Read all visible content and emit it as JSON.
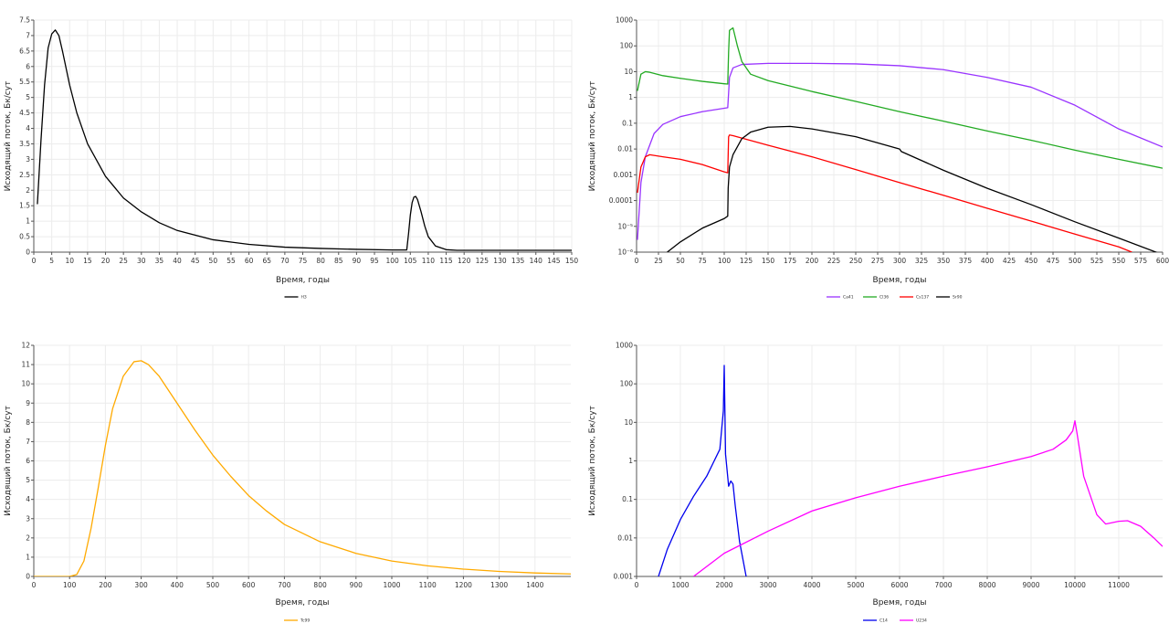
{
  "chart_data": [
    {
      "type": "line",
      "xlabel": "Время, годы",
      "ylabel": "Исходящий поток, Бк/сут",
      "xlim": [
        0,
        150
      ],
      "ylim": [
        0,
        7.5
      ],
      "yscale": "linear",
      "xticks": [
        0,
        5,
        10,
        15,
        20,
        25,
        30,
        35,
        40,
        45,
        50,
        55,
        60,
        65,
        70,
        75,
        80,
        85,
        90,
        95,
        100,
        105,
        110,
        115,
        120,
        125,
        130,
        135,
        140,
        145,
        150
      ],
      "xtick_labels": [
        "0",
        "5",
        "10",
        "15",
        "20",
        "25",
        "30",
        "35",
        "40",
        "45",
        "50",
        "55",
        "60",
        "65",
        "70",
        "75",
        "80",
        "85",
        "90",
        "95",
        "100",
        "105",
        "110",
        "115",
        "120",
        "125",
        "130",
        "135",
        "140",
        "145",
        "150"
      ],
      "yticks": [
        0,
        0.5,
        1,
        1.5,
        2,
        2.5,
        3,
        3.5,
        4,
        4.5,
        5,
        5.5,
        6,
        6.5,
        7,
        7.5
      ],
      "ytick_labels": [
        "0",
        "0.5",
        "1",
        "1.5",
        "2",
        "2.5",
        "3",
        "3.5",
        "4",
        "4.5",
        "5",
        "5.5",
        "6",
        "6.5",
        "7",
        "7.5"
      ],
      "grid": true,
      "legend_position": "bottom-center",
      "series": [
        {
          "name": "H3",
          "color": "#000000",
          "x": [
            1,
            2,
            3,
            4,
            5,
            6,
            7,
            8,
            10,
            12,
            15,
            20,
            25,
            30,
            35,
            40,
            50,
            60,
            70,
            80,
            90,
            100,
            104,
            104.5,
            105,
            105.5,
            106,
            106.5,
            107,
            108,
            109,
            110,
            112,
            115,
            118,
            120,
            130,
            150
          ],
          "y": [
            1.55,
            3.6,
            5.4,
            6.6,
            7.05,
            7.18,
            7.0,
            6.5,
            5.4,
            4.5,
            3.5,
            2.45,
            1.75,
            1.3,
            0.95,
            0.7,
            0.4,
            0.25,
            0.16,
            0.12,
            0.09,
            0.07,
            0.07,
            0.6,
            1.2,
            1.6,
            1.78,
            1.8,
            1.7,
            1.3,
            0.85,
            0.5,
            0.2,
            0.08,
            0.06,
            0.06,
            0.06,
            0.06
          ]
        }
      ]
    },
    {
      "type": "line",
      "xlabel": "Время, годы",
      "ylabel": "Исходящий поток, Бк/сут",
      "xlim": [
        0,
        600
      ],
      "ylim": [
        1e-06,
        1000
      ],
      "yscale": "log",
      "xticks": [
        0,
        25,
        50,
        75,
        100,
        125,
        150,
        175,
        200,
        225,
        250,
        275,
        300,
        325,
        350,
        375,
        400,
        425,
        450,
        475,
        500,
        525,
        550,
        575,
        600
      ],
      "xtick_labels": [
        "0",
        "25",
        "50",
        "75",
        "100",
        "125",
        "150",
        "175",
        "200",
        "225",
        "250",
        "275",
        "300",
        "325",
        "350",
        "375",
        "400",
        "425",
        "450",
        "475",
        "500",
        "525",
        "550",
        "575",
        "600"
      ],
      "yticks": [
        1e-06,
        1e-05,
        0.0001,
        0.001,
        0.01,
        0.1,
        1,
        10,
        100,
        1000
      ],
      "ytick_labels": [
        "10⁻⁶",
        "10⁻⁵",
        "0.0001",
        "0.001",
        "0.01",
        "0.1",
        "1",
        "10",
        "100",
        "1000"
      ],
      "grid": true,
      "legend_position": "bottom-center",
      "series": [
        {
          "name": "Ca41",
          "color": "#9933ff",
          "x": [
            1,
            5,
            10,
            20,
            30,
            50,
            75,
            100,
            104,
            105,
            106,
            110,
            120,
            150,
            200,
            250,
            300,
            350,
            400,
            450,
            500,
            550,
            600
          ],
          "y": [
            3e-06,
            0.0005,
            0.005,
            0.04,
            0.09,
            0.18,
            0.28,
            0.38,
            0.4,
            1.5,
            6,
            14,
            19,
            21,
            21,
            20,
            17,
            12,
            6,
            2.5,
            0.5,
            0.06,
            0.012
          ]
        },
        {
          "name": "Cl36",
          "color": "#22aa22",
          "x": [
            1,
            5,
            10,
            15,
            30,
            50,
            75,
            100,
            104,
            105,
            106,
            110,
            115,
            120,
            130,
            150,
            200,
            250,
            300,
            350,
            400,
            450,
            500,
            550,
            600
          ],
          "y": [
            1.8,
            8,
            10,
            9.5,
            7,
            5.5,
            4.2,
            3.4,
            3.3,
            60,
            400,
            500,
            100,
            25,
            8,
            4.5,
            1.7,
            0.7,
            0.28,
            0.12,
            0.05,
            0.022,
            0.009,
            0.004,
            0.0018
          ]
        },
        {
          "name": "Cs137",
          "color": "#ff0000",
          "x": [
            1,
            5,
            10,
            15,
            30,
            50,
            75,
            100,
            104,
            105,
            106,
            110,
            150,
            200,
            250,
            300,
            350,
            400,
            450,
            500,
            550,
            565
          ],
          "y": [
            0.0002,
            0.002,
            0.005,
            0.006,
            0.005,
            0.004,
            0.0025,
            0.0013,
            0.0012,
            0.03,
            0.035,
            0.033,
            0.014,
            0.005,
            0.0016,
            0.0005,
            0.00016,
            5e-05,
            1.6e-05,
            5e-06,
            1.6e-06,
            1e-06
          ]
        },
        {
          "name": "Sr90",
          "color": "#000000",
          "x": [
            35,
            50,
            75,
            100,
            104,
            104.5,
            106,
            110,
            120,
            130,
            150,
            175,
            200,
            250,
            300,
            302,
            350,
            400,
            450,
            500,
            550,
            600
          ],
          "y": [
            1e-06,
            2.5e-06,
            8.5e-06,
            2e-05,
            2.5e-05,
            0.0003,
            0.002,
            0.006,
            0.025,
            0.045,
            0.07,
            0.075,
            0.06,
            0.03,
            0.01,
            0.008,
            0.0015,
            0.0003,
            7e-05,
            1.5e-05,
            3.5e-06,
            8e-07
          ]
        }
      ]
    },
    {
      "type": "line",
      "xlabel": "Время, годы",
      "ylabel": "Исходящий поток, Бк/сут",
      "xlim": [
        0,
        1500
      ],
      "ylim": [
        0,
        12
      ],
      "yscale": "linear",
      "xticks": [
        0,
        100,
        200,
        300,
        400,
        500,
        600,
        700,
        800,
        900,
        1000,
        1100,
        1200,
        1300,
        1400
      ],
      "xtick_labels": [
        "0",
        "100",
        "200",
        "300",
        "400",
        "500",
        "600",
        "700",
        "800",
        "900",
        "1000",
        "1100",
        "1200",
        "1300",
        "1400"
      ],
      "yticks": [
        0,
        1,
        2,
        3,
        4,
        5,
        6,
        7,
        8,
        9,
        10,
        11,
        12
      ],
      "ytick_labels": [
        "0",
        "1",
        "2",
        "3",
        "4",
        "5",
        "6",
        "7",
        "8",
        "9",
        "10",
        "11",
        "12"
      ],
      "grid": true,
      "legend_position": "bottom-center",
      "series": [
        {
          "name": "Tc99",
          "color": "#ffaa00",
          "x": [
            0,
            100,
            120,
            140,
            160,
            180,
            200,
            220,
            250,
            280,
            300,
            320,
            350,
            400,
            450,
            500,
            550,
            600,
            650,
            700,
            800,
            900,
            1000,
            1100,
            1200,
            1300,
            1400,
            1500
          ],
          "y": [
            0,
            0,
            0.1,
            0.8,
            2.5,
            4.6,
            6.8,
            8.7,
            10.4,
            11.15,
            11.2,
            11.0,
            10.4,
            9.0,
            7.6,
            6.3,
            5.2,
            4.2,
            3.4,
            2.7,
            1.8,
            1.2,
            0.8,
            0.55,
            0.38,
            0.26,
            0.18,
            0.13
          ]
        }
      ]
    },
    {
      "type": "line",
      "xlabel": "Время, годы",
      "ylabel": "Исходящий поток, Бк/сут",
      "xlim": [
        0,
        12000
      ],
      "ylim": [
        0.001,
        1000
      ],
      "yscale": "log",
      "xticks": [
        0,
        1000,
        2000,
        3000,
        4000,
        5000,
        6000,
        7000,
        8000,
        9000,
        10000,
        11000
      ],
      "xtick_labels": [
        "0",
        "1000",
        "2000",
        "3000",
        "4000",
        "5000",
        "6000",
        "7000",
        "8000",
        "9000",
        "10000",
        "11000"
      ],
      "yticks": [
        0.001,
        0.01,
        0.1,
        1,
        10,
        100,
        1000
      ],
      "ytick_labels": [
        "0.001",
        "0.01",
        "0.1",
        "1",
        "10",
        "100",
        "1000"
      ],
      "grid": true,
      "legend_position": "bottom-center",
      "series": [
        {
          "name": "C14",
          "color": "#0000ee",
          "x": [
            500,
            700,
            1000,
            1300,
            1600,
            1900,
            1980,
            2000,
            2030,
            2100,
            2150,
            2200,
            2250,
            2350,
            2500
          ],
          "y": [
            0.001,
            0.005,
            0.03,
            0.12,
            0.4,
            2,
            20,
            300,
            1.5,
            0.22,
            0.3,
            0.25,
            0.07,
            0.008,
            0.001
          ]
        },
        {
          "name": "U234",
          "color": "#ff00ff",
          "x": [
            1300,
            2000,
            3000,
            4000,
            5000,
            6000,
            7000,
            8000,
            9000,
            9500,
            9800,
            9950,
            10000,
            10050,
            10200,
            10500,
            10700,
            11000,
            11200,
            11500,
            11800,
            12000
          ],
          "y": [
            0.001,
            0.004,
            0.015,
            0.05,
            0.11,
            0.22,
            0.4,
            0.7,
            1.3,
            2,
            3.5,
            6,
            11,
            5,
            0.4,
            0.04,
            0.023,
            0.027,
            0.028,
            0.02,
            0.01,
            0.006
          ]
        }
      ]
    }
  ]
}
